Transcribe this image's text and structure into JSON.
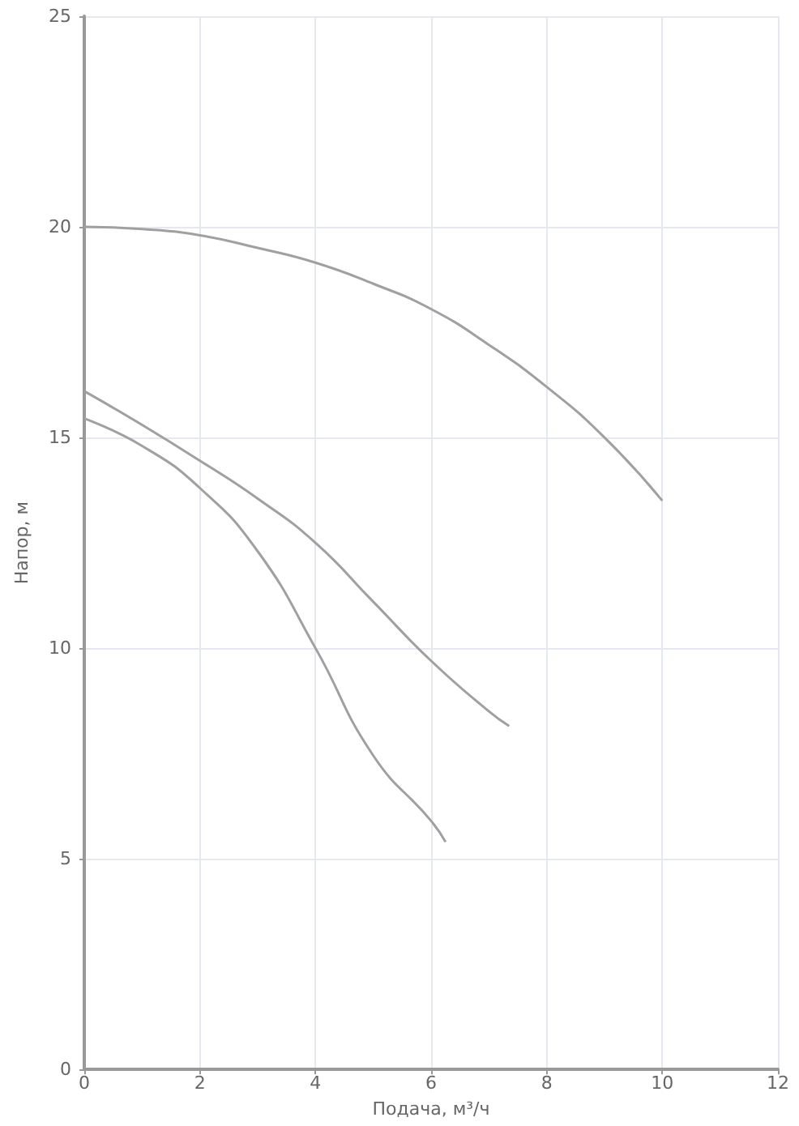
{
  "chart_data": {
    "type": "line",
    "xlabel": "Подача, м³/ч",
    "ylabel": "Напор, м",
    "xlim": [
      0,
      12
    ],
    "xticks": [
      0,
      2,
      4,
      6,
      8,
      10,
      12
    ],
    "ylim": [
      0,
      25
    ],
    "yticks": [
      0,
      5,
      10,
      15,
      20,
      25
    ],
    "grid": true,
    "marker": "none",
    "line_style": "solid",
    "series": [
      {
        "color": "#a0a0a0",
        "x": [
          0,
          1,
          2,
          3,
          4,
          5,
          6,
          7,
          8,
          9,
          10
        ],
        "values": [
          20,
          19.95,
          19.8,
          19.5,
          19.15,
          18.65,
          18.05,
          17.2,
          16.2,
          15,
          13.5
        ]
      },
      {
        "color": "#a0a0a0",
        "x": [
          0,
          1,
          2,
          3,
          4,
          5,
          6,
          7,
          7.35
        ],
        "values": [
          16.1,
          15.3,
          14.45,
          13.55,
          12.5,
          11.1,
          9.7,
          8.5,
          8.15
        ]
      },
      {
        "color": "#a0a0a0",
        "x": [
          0,
          1,
          2,
          3,
          4,
          5,
          6,
          6.25
        ],
        "values": [
          15.45,
          14.8,
          13.8,
          12.3,
          10.0,
          7.45,
          5.9,
          5.4
        ]
      }
    ]
  }
}
